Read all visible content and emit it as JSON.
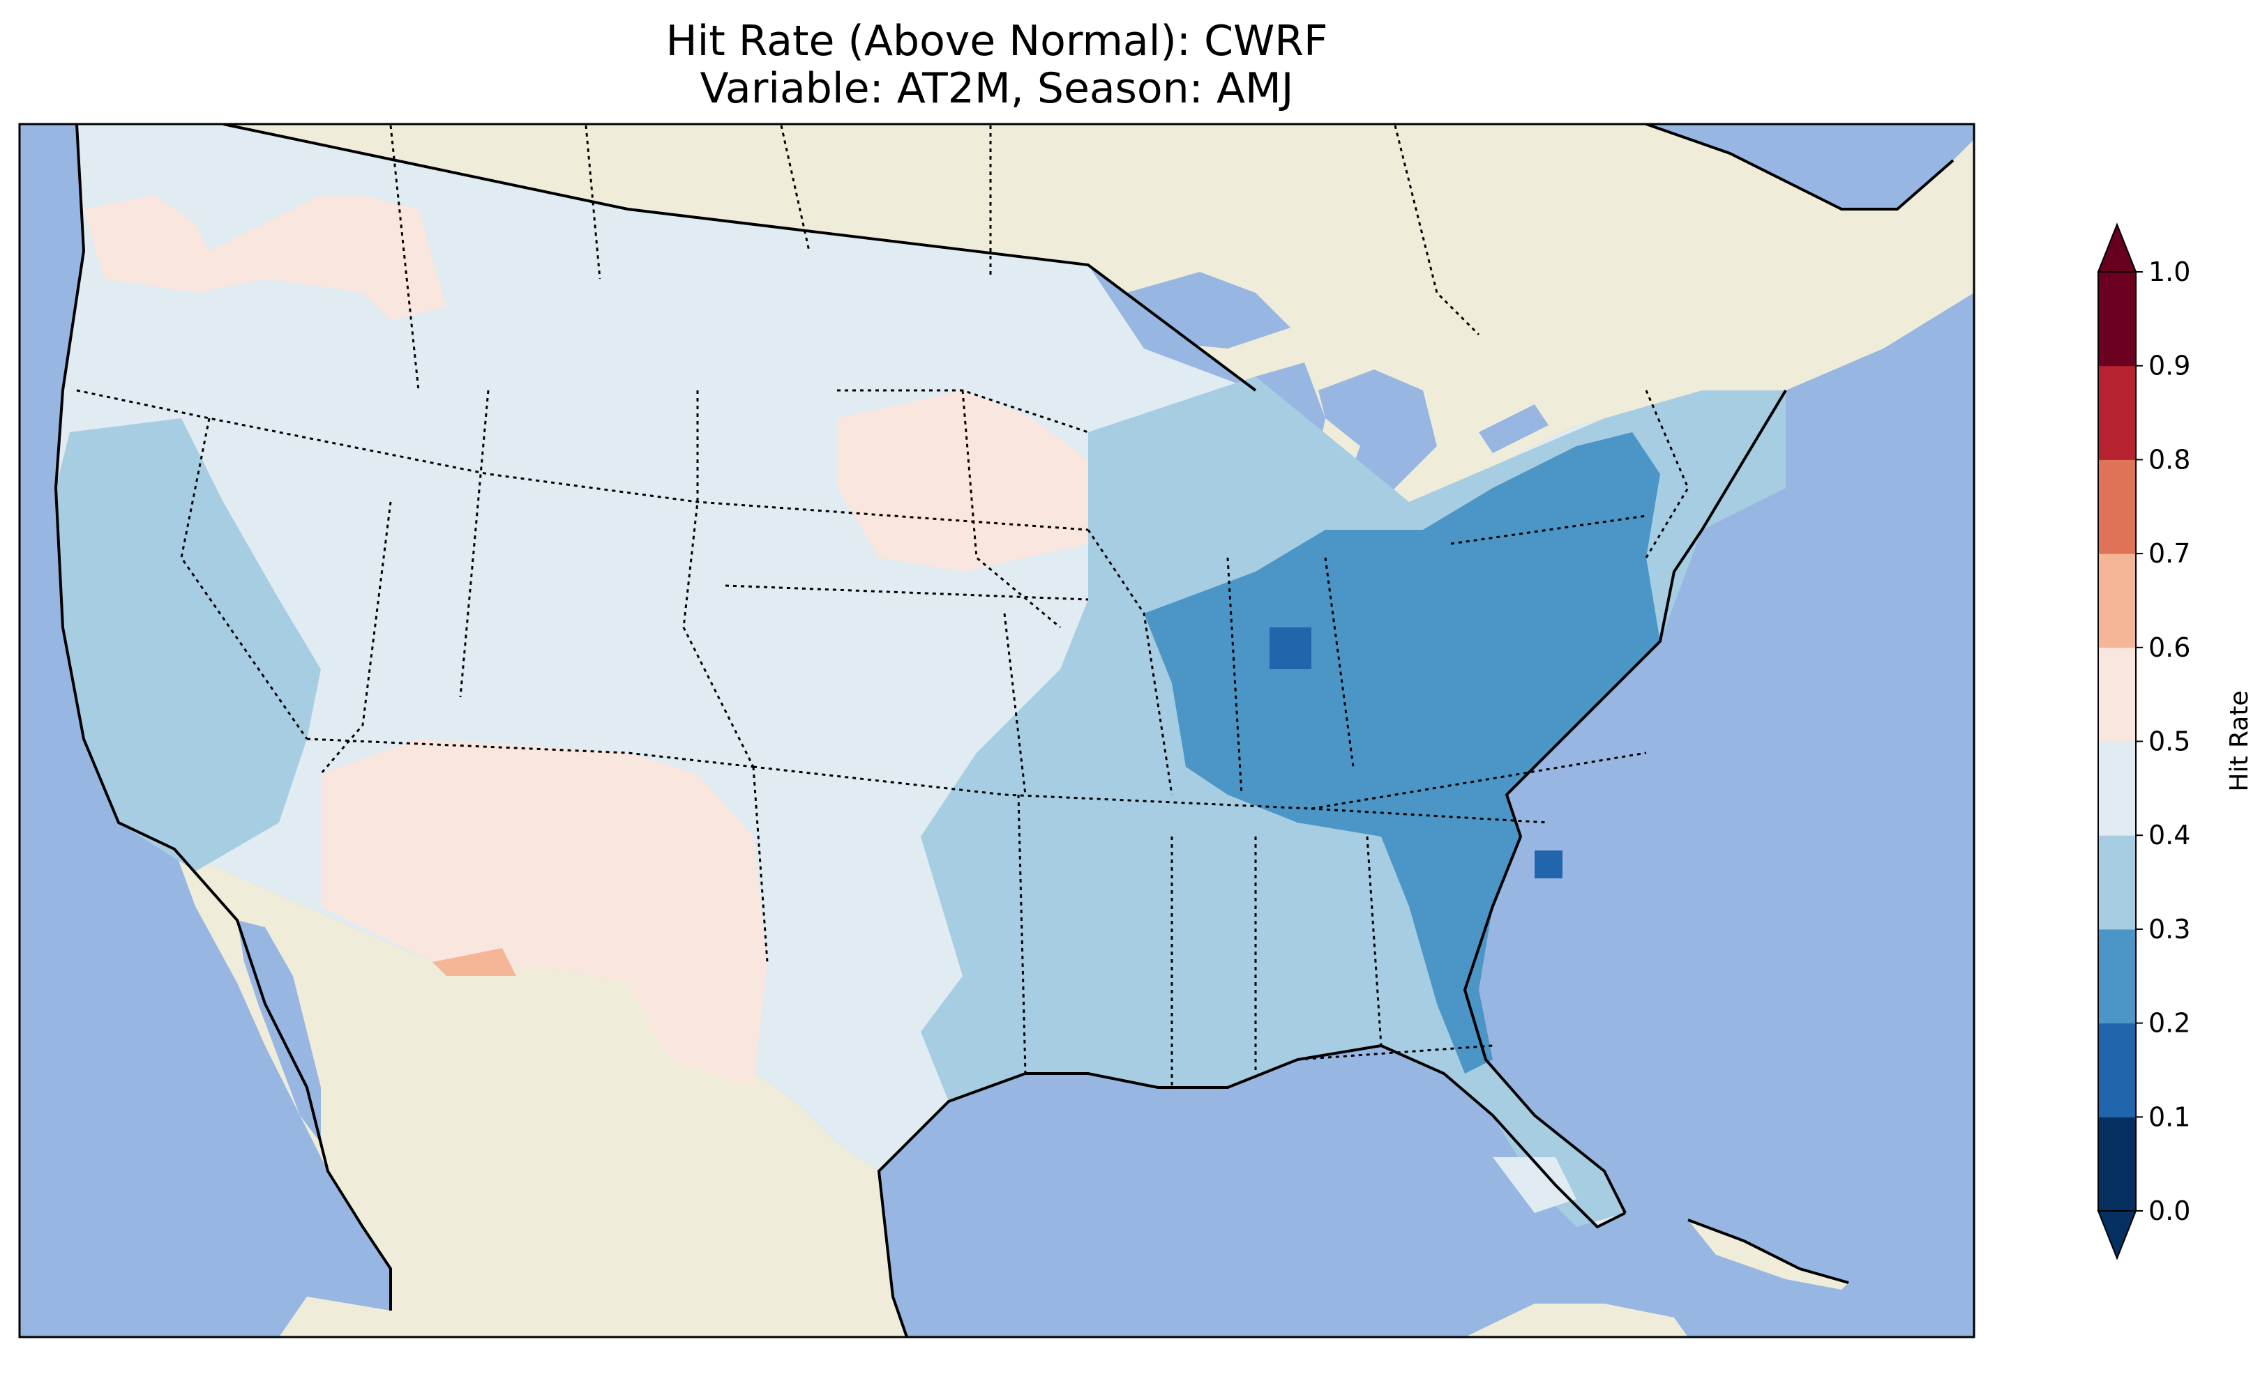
{
  "title": {
    "line1": "Hit Rate (Above Normal): CWRF",
    "line2": "Variable: AT2M, Season: AMJ"
  },
  "colors": {
    "ocean": "#97b6e1",
    "land": "#efedda",
    "border": "#000000"
  },
  "colorbar": {
    "label": "Hit Rate",
    "ticks": [
      "0.0",
      "0.1",
      "0.2",
      "0.3",
      "0.4",
      "0.5",
      "0.6",
      "0.7",
      "0.8",
      "0.9",
      "1.0"
    ],
    "colors": [
      "#053061",
      "#2166ac",
      "#4393c3",
      "#92c5de",
      "#d1e5f0",
      "#f7f7f7",
      "#fddbc7",
      "#f4a582",
      "#d6604d",
      "#b2182b",
      "#67001f"
    ],
    "bins": [
      {
        "range": "0.0-0.1",
        "color": "#053061"
      },
      {
        "range": "0.1-0.2",
        "color": "#2166ac"
      },
      {
        "range": "0.2-0.3",
        "color": "#4b96c6"
      },
      {
        "range": "0.3-0.4",
        "color": "#a6cde2"
      },
      {
        "range": "0.4-0.5",
        "color": "#e0ebf2"
      },
      {
        "range": "0.5-0.6",
        "color": "#f9e6de"
      },
      {
        "range": "0.6-0.7",
        "color": "#f5b698"
      },
      {
        "range": "0.7-0.8",
        "color": "#de7358"
      },
      {
        "range": "0.8-0.9",
        "color": "#b6222f"
      },
      {
        "range": "0.9-1.0",
        "color": "#6b0020"
      }
    ],
    "extend": "both"
  },
  "map_regions": [
    {
      "name": "pacific-northwest",
      "hit_rate_bin": "0.5-0.6"
    },
    {
      "name": "west-interior",
      "hit_rate_bin": "0.4-0.5"
    },
    {
      "name": "california-nevada",
      "hit_rate_bin": "0.3-0.4"
    },
    {
      "name": "arizona-new-mexico",
      "hit_rate_bin": "0.5-0.6"
    },
    {
      "name": "iowa-nebraska",
      "hit_rate_bin": "0.5-0.6"
    },
    {
      "name": "southern-plains",
      "hit_rate_bin": "0.4-0.5"
    },
    {
      "name": "midwest-south",
      "hit_rate_bin": "0.3-0.4"
    },
    {
      "name": "ohio-valley-mid-atlantic",
      "hit_rate_bin": "0.2-0.3"
    },
    {
      "name": "indiana-spot",
      "hit_rate_bin": "0.1-0.2"
    },
    {
      "name": "south-carolina-coast-spot",
      "hit_rate_bin": "0.1-0.2"
    },
    {
      "name": "new-england",
      "hit_rate_bin": "0.3-0.4"
    },
    {
      "name": "florida-south",
      "hit_rate_bin": "0.4-0.5"
    },
    {
      "name": "new-mexico-border-spot",
      "hit_rate_bin": "0.6-0.7"
    }
  ]
}
